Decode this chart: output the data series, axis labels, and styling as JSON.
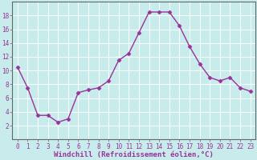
{
  "x": [
    0,
    1,
    2,
    3,
    4,
    5,
    6,
    7,
    8,
    9,
    10,
    11,
    12,
    13,
    14,
    15,
    16,
    17,
    18,
    19,
    20,
    21,
    22,
    23
  ],
  "y": [
    10.5,
    7.5,
    3.5,
    3.5,
    2.5,
    3.0,
    6.8,
    7.2,
    7.5,
    8.5,
    11.5,
    12.5,
    15.5,
    18.5,
    18.5,
    18.5,
    16.5,
    13.5,
    11.0,
    9.0,
    8.5,
    9.0,
    7.5,
    7.0
  ],
  "line_color": "#993399",
  "marker": "D",
  "marker_size": 2.5,
  "background_color": "#c8ecec",
  "grid_color": "#ffffff",
  "xlabel": "Windchill (Refroidissement éolien,°C)",
  "xlabel_fontsize": 6.5,
  "ylim": [
    0,
    20
  ],
  "xlim": [
    -0.5,
    23.5
  ],
  "yticks": [
    2,
    4,
    6,
    8,
    10,
    12,
    14,
    16,
    18
  ],
  "xticks": [
    0,
    1,
    2,
    3,
    4,
    5,
    6,
    7,
    8,
    9,
    10,
    11,
    12,
    13,
    14,
    15,
    16,
    17,
    18,
    19,
    20,
    21,
    22,
    23
  ],
  "tick_fontsize": 5.5,
  "line_width": 1.0,
  "tick_color": "#993399",
  "label_color": "#993399",
  "spine_color": "#666666"
}
